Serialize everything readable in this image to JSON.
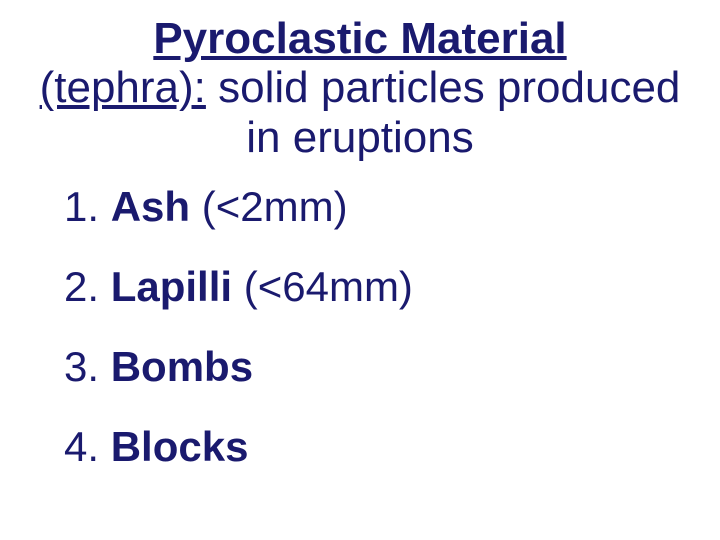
{
  "title": {
    "main": "Pyroclastic Material",
    "alt_prefix": "(tephra):",
    "description_line1_rest": " solid particles produced",
    "description_line2": "in eruptions"
  },
  "items": [
    {
      "term": "Ash",
      "detail": " (<2mm)"
    },
    {
      "term": "Lapilli",
      "detail": " (<64mm)"
    },
    {
      "term": "Bombs",
      "detail": ""
    },
    {
      "term": "Blocks",
      "detail": ""
    }
  ],
  "colors": {
    "text": "#1a1a6e",
    "background": "#ffffff"
  },
  "typography": {
    "font_family": "Comic Sans MS",
    "title_fontsize": 44,
    "item_fontsize": 42
  }
}
